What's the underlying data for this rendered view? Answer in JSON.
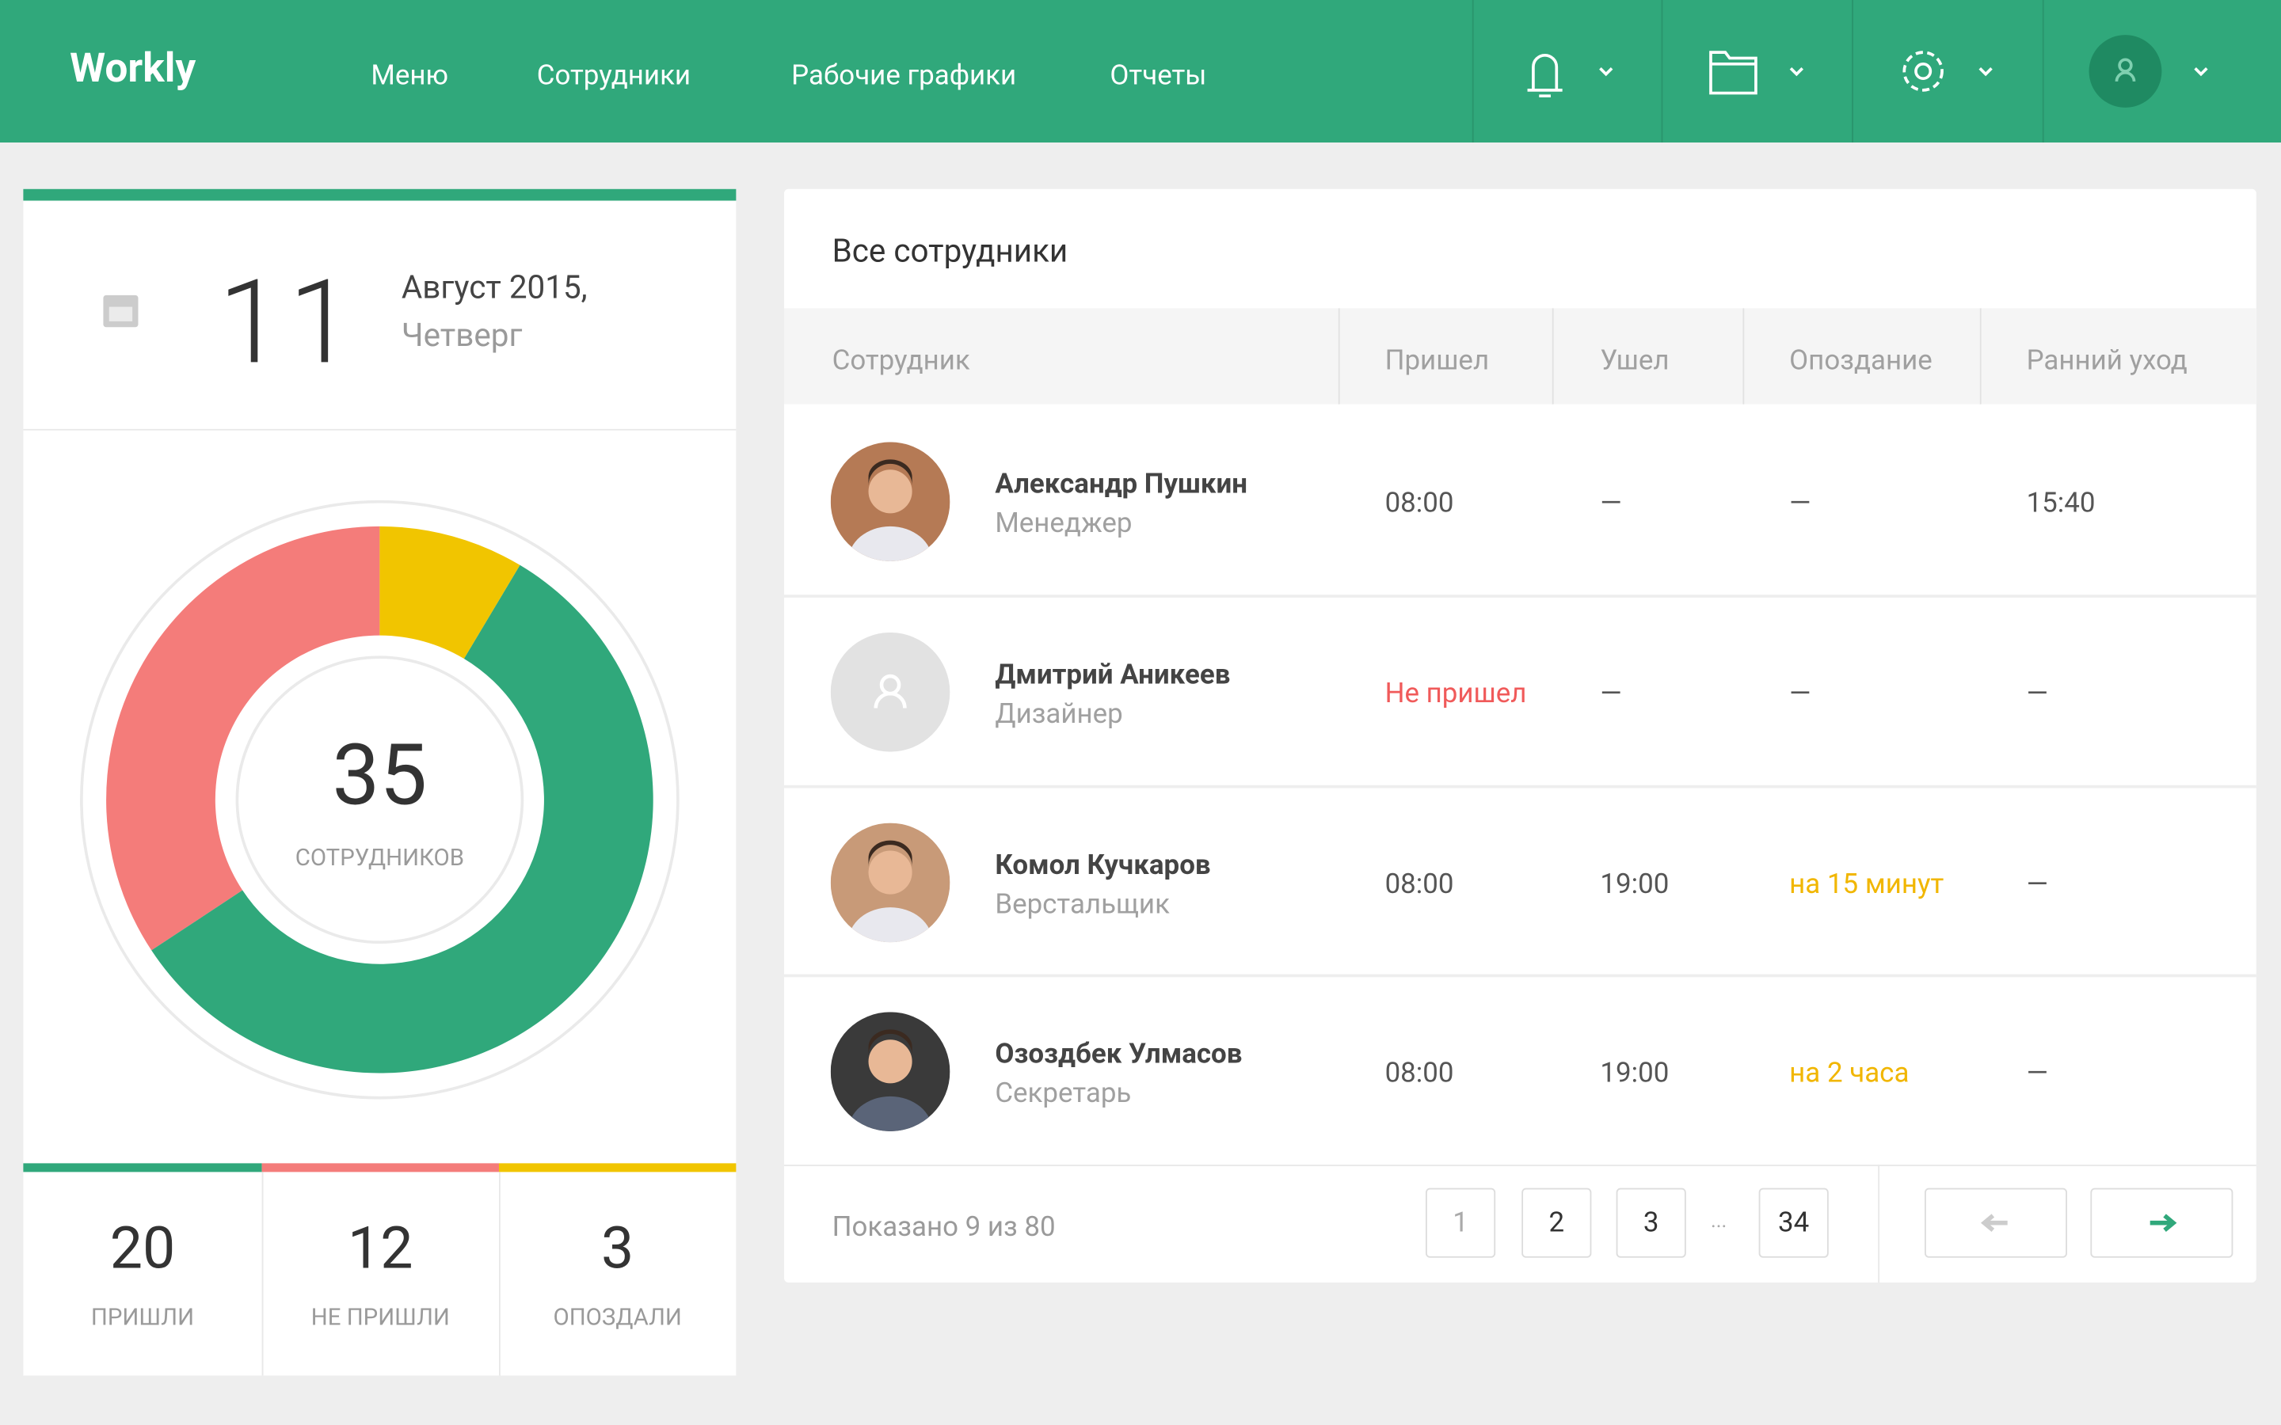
{
  "header": {
    "logo": "Workly",
    "nav": [
      "Меню",
      "Сотрудники",
      "Рабочие графики",
      "Отчеты"
    ]
  },
  "date": {
    "day": "11",
    "month_year": "Август 2015,",
    "weekday": "Четверг"
  },
  "summary": {
    "total": "35",
    "total_label": "СОТРУДНИКОВ",
    "stats": [
      {
        "value": 20,
        "label": "ПРИШЛИ",
        "color": "#30a87b"
      },
      {
        "value": 12,
        "label": "НЕ ПРИШЛИ",
        "color": "#f47c7a"
      },
      {
        "value": 3,
        "label": "ОПОЗДАЛИ",
        "color": "#f1c500"
      }
    ]
  },
  "table": {
    "title": "Все сотрудники",
    "columns": [
      "Сотрудник",
      "Пришел",
      "Ушел",
      "Опоздание",
      "Ранний уход"
    ],
    "rows": [
      {
        "name": "Александр Пушкин",
        "role": "Менеджер",
        "arrived": "08:00",
        "left": "—",
        "late": "—",
        "early": "15:40"
      },
      {
        "name": "Дмитрий Аникеев",
        "role": "Дизайнер",
        "arrived": "Не пришел",
        "left": "—",
        "late": "—",
        "early": "—"
      },
      {
        "name": "Комол Кучкаров",
        "role": "Верстальщик",
        "arrived": "08:00",
        "left": "19:00",
        "late": "на 15 минут",
        "early": "—"
      },
      {
        "name": "Озоздбек Улмасов",
        "role": "Секретарь",
        "arrived": "08:00",
        "left": "19:00",
        "late": "на 2 часа",
        "early": "—"
      }
    ],
    "footer": {
      "shown": "Показано 9 из 80",
      "pages": [
        "1",
        "2",
        "3",
        "...",
        "34"
      ]
    }
  }
}
